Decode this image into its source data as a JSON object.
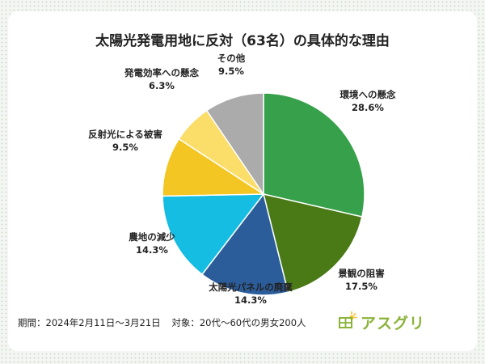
{
  "chart_data": {
    "type": "pie",
    "title": "太陽光発電用地に反対（63名）の具体的な理由",
    "slices": [
      {
        "label": "環境への懸念",
        "pct_text": "28.6%",
        "value": 28.6,
        "color": "#36a14a"
      },
      {
        "label": "景観の阻害",
        "pct_text": "17.5%",
        "value": 17.5,
        "color": "#4a7a16"
      },
      {
        "label": "太陽光パネルの廃棄",
        "pct_text": "14.3%",
        "value": 14.3,
        "color": "#2b5d9b"
      },
      {
        "label": "農地の減少",
        "pct_text": "14.3%",
        "value": 14.3,
        "color": "#16bde3"
      },
      {
        "label": "反射光による被害",
        "pct_text": "9.5%",
        "value": 9.5,
        "color": "#f3c623"
      },
      {
        "label": "発電効率への懸念",
        "pct_text": "6.3%",
        "value": 6.3,
        "color": "#fbdd6a"
      },
      {
        "label": "その他",
        "pct_text": "9.5%",
        "value": 9.5,
        "color": "#ababab"
      }
    ]
  },
  "footer": {
    "period": "期間：2024年2月11日〜3月21日",
    "target": "対象：20代〜60代の男女200人"
  },
  "brand": {
    "name": "アスグリ",
    "icon": "sun-panel-logo-icon",
    "color": "#8bb33a"
  }
}
